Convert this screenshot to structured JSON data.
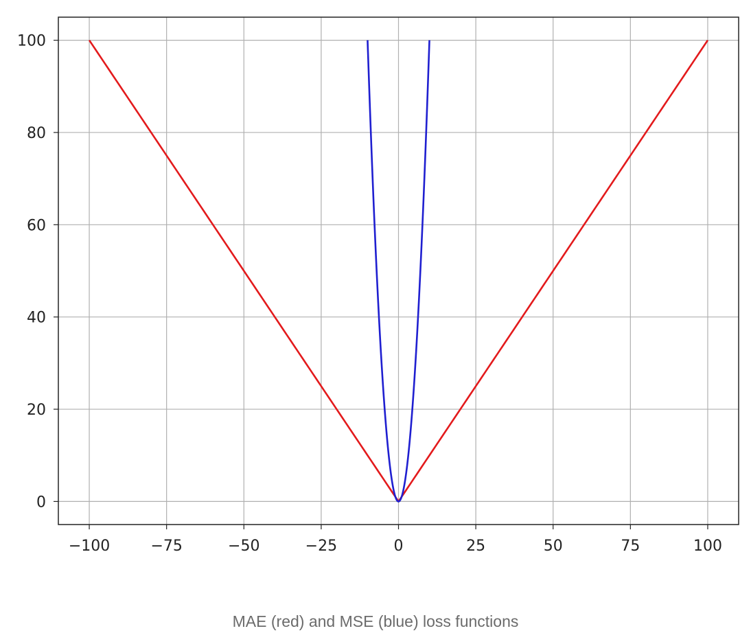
{
  "chart_data": {
    "type": "line",
    "title": "",
    "xlabel": "",
    "ylabel": "",
    "xlim": [
      -110,
      110
    ],
    "ylim": [
      -5,
      105
    ],
    "xticks": [
      -100,
      -75,
      -50,
      -25,
      0,
      25,
      50,
      75,
      100
    ],
    "xtick_labels": [
      "−100",
      "−75",
      "−50",
      "−25",
      "0",
      "25",
      "50",
      "75",
      "100"
    ],
    "yticks": [
      0,
      20,
      40,
      60,
      80,
      100
    ],
    "ytick_labels": [
      "0",
      "20",
      "40",
      "60",
      "80",
      "100"
    ],
    "grid": true,
    "series": [
      {
        "name": "MAE",
        "color": "#e31a1c",
        "function": "abs",
        "x": [
          -100,
          0,
          100
        ],
        "y": [
          100,
          0,
          100
        ]
      },
      {
        "name": "MSE",
        "color": "#1f1fd0",
        "function": "square",
        "x": [
          -10,
          -9,
          -8,
          -7,
          -6,
          -5,
          -4,
          -3,
          -2,
          -1,
          0,
          1,
          2,
          3,
          4,
          5,
          6,
          7,
          8,
          9,
          10
        ],
        "y": [
          100,
          81,
          64,
          49,
          36,
          25,
          16,
          9,
          4,
          1,
          0,
          1,
          4,
          9,
          16,
          25,
          36,
          49,
          64,
          81,
          100
        ]
      }
    ]
  },
  "caption": "MAE (red) and MSE (blue) loss functions"
}
